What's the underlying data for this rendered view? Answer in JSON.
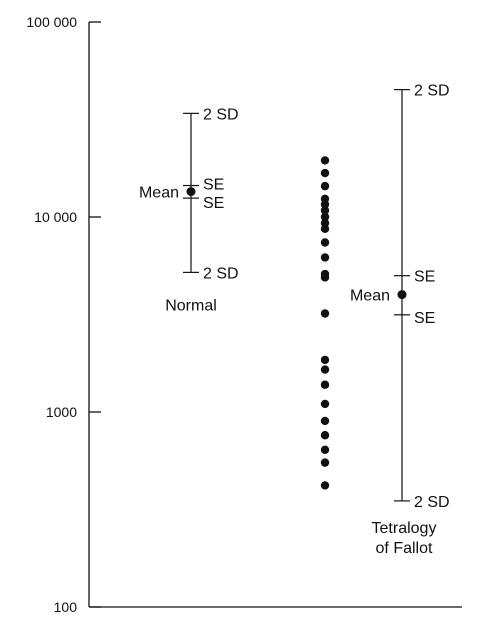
{
  "chart_data": {
    "type": "scatter",
    "yscale": "log",
    "ylim": [
      100,
      100000
    ],
    "ytick_values": [
      100,
      1000,
      10000,
      100000
    ],
    "ytick_labels": [
      "100",
      "1000",
      "10 000",
      "100 000"
    ],
    "xlabel": "",
    "ylabel": "",
    "groups": [
      {
        "label": "Normal",
        "mean": 13500,
        "se_upper": 14500,
        "se_lower": 12500,
        "sd2_upper": 34000,
        "sd2_lower": 5200,
        "labels": {
          "mean": "Mean",
          "se_upper": "SE",
          "se_lower": "SE",
          "sd_upper": "2 SD",
          "sd_lower": "2 SD"
        }
      },
      {
        "label_lines": [
          "Tetralogy",
          "of Fallot"
        ],
        "points": [
          420,
          550,
          640,
          760,
          900,
          1100,
          1380,
          1650,
          1850,
          3200,
          4900,
          5100,
          6200,
          7400,
          8700,
          9300,
          10000,
          10800,
          11600,
          12400,
          14400,
          16800,
          19500
        ],
        "mean": 4000,
        "se_upper": 5000,
        "se_lower": 3150,
        "sd2_upper": 45000,
        "sd2_lower": 350,
        "labels": {
          "mean": "Mean",
          "se_upper": "SE",
          "se_lower": "SE",
          "sd_upper": "2 SD",
          "sd_lower": "2 SD"
        }
      }
    ],
    "color": "#111111"
  }
}
